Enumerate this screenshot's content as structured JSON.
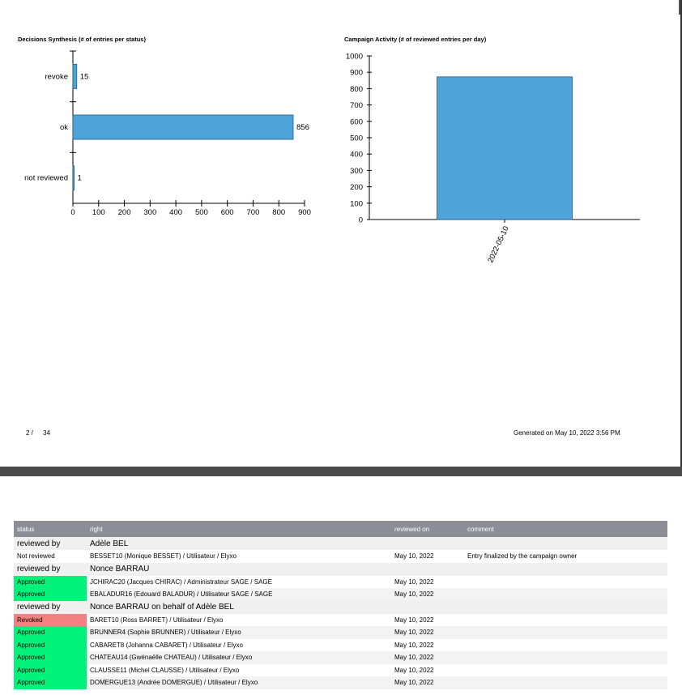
{
  "page1": {
    "footer_page": "2 /",
    "footer_total": "34",
    "footer_generated": "Generated on May 10, 2022 3:56 PM"
  },
  "chart_data": [
    {
      "type": "bar",
      "orientation": "horizontal",
      "title": "Decisions Synthesis (# of entries per status)",
      "categories": [
        "revoke",
        "ok",
        "not reviewed"
      ],
      "values": [
        15,
        856,
        1
      ],
      "xlim": [
        0,
        900
      ],
      "x_ticks": [
        "0",
        "100",
        "200",
        "300",
        "400",
        "500",
        "600",
        "700",
        "800",
        "900"
      ],
      "bar_color": "#4fa3db"
    },
    {
      "type": "bar",
      "title": "Campaign Activity (# of reviewed entries per day)",
      "categories": [
        "2022-05-10"
      ],
      "values": [
        872
      ],
      "ylim": [
        0,
        1000
      ],
      "y_ticks": [
        "0",
        "100",
        "200",
        "300",
        "400",
        "500",
        "600",
        "700",
        "800",
        "900",
        "1000"
      ],
      "bar_color": "#4fa3db"
    }
  ],
  "table": {
    "headers": [
      "status",
      "right",
      "reviewed on",
      "comment"
    ],
    "rows": [
      {
        "kind": "group",
        "label": "reviewed by",
        "value": "Adèle BEL"
      },
      {
        "kind": "entry",
        "status": "Not reviewed",
        "right": "BESSET10 (Monique BESSET) / Utilisateur / Elyxo",
        "date": "May 10, 2022",
        "comment": "Entry finalized by the campaign owner"
      },
      {
        "kind": "group",
        "label": "reviewed by",
        "value": "Nonce BARRAU"
      },
      {
        "kind": "entry",
        "status": "Approved",
        "right": "JCHIRAC20 (Jacques CHIRAC) / Administrateur SAGE / SAGE",
        "date": "May 10, 2022",
        "comment": ""
      },
      {
        "kind": "entry",
        "status": "Approved",
        "right": "EBALADUR16 (Edouard BALADUR) / Utilisateur SAGE / SAGE",
        "date": "May 10, 2022",
        "comment": ""
      },
      {
        "kind": "group",
        "label": "reviewed by",
        "value": "Nonce BARRAU on behalf of Adèle BEL"
      },
      {
        "kind": "entry",
        "status": "Revoked",
        "right": "BARET10 (Ross BARRET) / Utilisateur / Elyxo",
        "date": "May 10, 2022",
        "comment": ""
      },
      {
        "kind": "entry",
        "status": "Approved",
        "right": "BRUNNER4 (Sophie BRUNNER) / Utilisateur / Elyxo",
        "date": "May 10, 2022",
        "comment": ""
      },
      {
        "kind": "entry",
        "status": "Approved",
        "right": "CABARET8 (Johanna CABARET) / Utilisateur / Elyxo",
        "date": "May 10, 2022",
        "comment": ""
      },
      {
        "kind": "entry",
        "status": "Approved",
        "right": "CHATEAU14 (Gwénaëlle CHATEAU) / Utilisateur / Elyxo",
        "date": "May 10, 2022",
        "comment": ""
      },
      {
        "kind": "entry",
        "status": "Approved",
        "right": "CLAUSSE11 (Michel CLAUSSE) / Utilisateur / Elyxo",
        "date": "May 10, 2022",
        "comment": ""
      },
      {
        "kind": "entry",
        "status": "Approved",
        "right": "DOMERGUE13 (Andrée DOMERGUE) / Utilisateur / Elyxo",
        "date": "May 10, 2022",
        "comment": ""
      }
    ]
  }
}
